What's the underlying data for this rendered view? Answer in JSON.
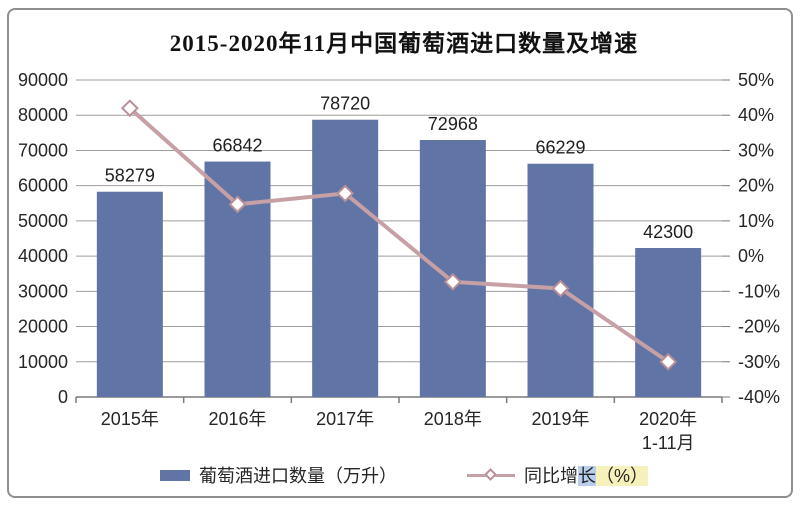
{
  "title": "2015-2020年11月中国葡萄酒进口数量及增速",
  "colors": {
    "bar": "#6174a6",
    "line": "#c7a0a6",
    "marker_fill": "#ffffff",
    "marker_stroke": "#b98f97",
    "grid": "#9e9e9e",
    "axis": "#7a7a7a",
    "text": "#262626",
    "border": "#8f8f8f"
  },
  "chart_data": {
    "type": "bar+line",
    "title": "2015-2020年11月中国葡萄酒进口数量及增速",
    "categories": [
      "2015年",
      "2016年",
      "2017年",
      "2018年",
      "2019年",
      "2020年"
    ],
    "category_sublabels": [
      "",
      "",
      "",
      "",
      "",
      "1-11月"
    ],
    "bar_series": {
      "name": "葡萄酒进口数量（万升）",
      "values": [
        58279,
        66842,
        78720,
        72968,
        66229,
        42300
      ],
      "data_labels": [
        "58279",
        "66842",
        "78720",
        "72968",
        "66229",
        "42300"
      ],
      "axis": "left"
    },
    "line_series": {
      "name": "同比增长（%）",
      "values": [
        42,
        14.7,
        17.8,
        -7.3,
        -9.2,
        -30
      ],
      "axis": "right",
      "marker": "white-diamond"
    },
    "left_axis": {
      "min": 0,
      "max": 90000,
      "step": 10000,
      "tick_labels": [
        "0",
        "10000",
        "20000",
        "30000",
        "40000",
        "50000",
        "60000",
        "70000",
        "80000",
        "90000"
      ]
    },
    "right_axis": {
      "min": -40,
      "max": 50,
      "step": 10,
      "tick_labels": [
        "-40%",
        "-30%",
        "-20%",
        "-10%",
        "0%",
        "10%",
        "20%",
        "30%",
        "40%",
        "50%"
      ]
    },
    "grid": true,
    "legend_position": "bottom"
  },
  "legend": {
    "items": [
      {
        "label": "葡萄酒进口数量（万升）",
        "marker": "bar-swatch"
      },
      {
        "label": "同比增长（%）",
        "marker": "line-diamond",
        "label_parts": [
          "同比增",
          "长",
          "（%）"
        ]
      }
    ]
  }
}
